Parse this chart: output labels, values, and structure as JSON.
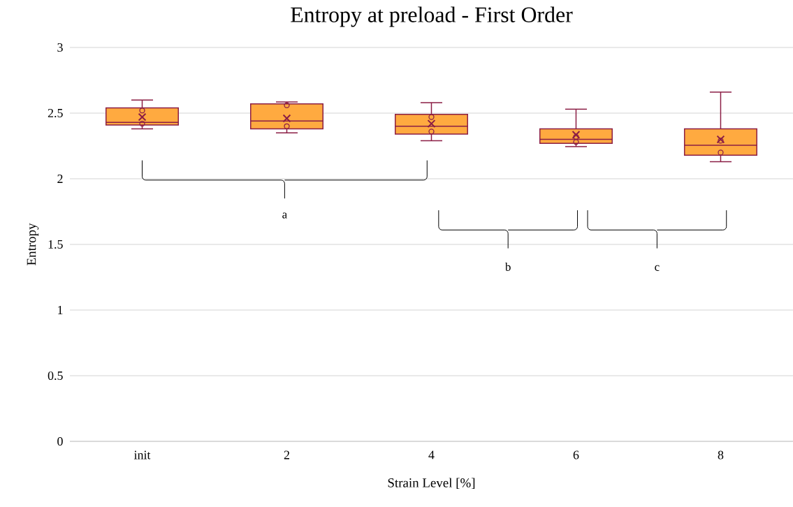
{
  "chart_data": {
    "type": "box",
    "title": "Entropy at preload - First Order",
    "xlabel": "Strain Level [%]",
    "ylabel": "Entropy",
    "categories": [
      "init",
      "2",
      "4",
      "6",
      "8"
    ],
    "series": [
      {
        "color": "#8b1e45",
        "boxes": [
          {
            "low": 2.38,
            "q1": 2.41,
            "median": 2.43,
            "q3": 2.54,
            "high": 2.6,
            "mean": 2.47,
            "outliers": [
              2.52,
              2.42
            ]
          },
          {
            "low": 2.35,
            "q1": 2.38,
            "median": 2.44,
            "q3": 2.57,
            "high": 2.585,
            "mean": 2.46,
            "outliers": [
              2.56,
              2.4
            ]
          },
          {
            "low": 2.29,
            "q1": 2.34,
            "median": 2.4,
            "q3": 2.49,
            "high": 2.58,
            "mean": 2.42,
            "outliers": [
              2.47,
              2.36
            ]
          },
          {
            "low": 2.245,
            "q1": 2.27,
            "median": 2.3,
            "q3": 2.38,
            "high": 2.53,
            "mean": 2.335,
            "outliers": [
              2.32,
              2.28
            ]
          },
          {
            "low": 2.13,
            "q1": 2.18,
            "median": 2.255,
            "q3": 2.38,
            "high": 2.66,
            "mean": 2.3,
            "outliers": [
              2.29,
              2.2
            ]
          }
        ]
      }
    ],
    "ylim": [
      0,
      3
    ],
    "yticks": [
      0,
      0.5,
      1,
      1.5,
      2,
      2.5,
      3
    ],
    "grid": "y",
    "annotations": [
      "a",
      "b",
      "c"
    ]
  }
}
